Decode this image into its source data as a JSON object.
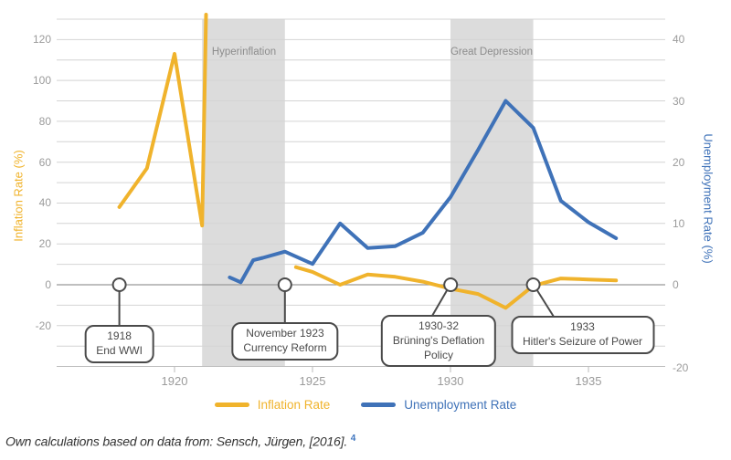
{
  "caption": {
    "text": "Own calculations based on data from: Sensch, Jürgen, [2016].",
    "footnote_ref": "4",
    "footnote_color": "#3e74be"
  },
  "legend": {
    "items": [
      {
        "label": "Inflation Rate",
        "color": "#F0B32C"
      },
      {
        "label": "Unemployment Rate",
        "color": "#3F72B8"
      }
    ]
  },
  "chart_data": {
    "type": "line",
    "title": "",
    "x_axis": {
      "tick_years": [
        1920,
        1925,
        1930,
        1935
      ]
    },
    "left_axis": {
      "title": "Inflation Rate (%)",
      "color": "#F0B32C",
      "tick_values": [
        120,
        100,
        80,
        60,
        40,
        20,
        0,
        -20
      ],
      "range": [
        -40,
        130
      ],
      "grid_step": 10
    },
    "right_axis": {
      "title": "Unemployment Rate (%)",
      "color": "#3F72B8",
      "tick_values": [
        40,
        30,
        20,
        10,
        0,
        -20
      ],
      "scale_ratio_to_left": 3
    },
    "bands": [
      {
        "label": "Hyperinflation",
        "from_year": 1921,
        "to_year": 1924,
        "fill": "#DCDCDC"
      },
      {
        "label": "Great Depression",
        "from_year": 1930,
        "to_year": 1933,
        "fill": "#DCDCDC"
      }
    ],
    "series": [
      {
        "name": "Inflation Rate",
        "axis": "left",
        "unit": "%",
        "color": "#F0B32C",
        "segments": [
          [
            [
              1918,
              38
            ],
            [
              1919,
              57
            ],
            [
              1920,
              113
            ],
            [
              1921,
              29
            ]
          ],
          [
            [
              1924.4,
              8.6
            ],
            [
              1925,
              6.3
            ],
            [
              1926,
              0
            ],
            [
              1927,
              5
            ],
            [
              1928,
              3.9
            ],
            [
              1929,
              1.5
            ],
            [
              1930,
              -1.9
            ],
            [
              1931,
              -4.5
            ],
            [
              1932,
              -11.3
            ],
            [
              1933,
              -0.5
            ],
            [
              1934,
              3.1
            ],
            [
              1935,
              2.6
            ],
            [
              1936,
              2.1
            ]
          ]
        ],
        "offscale_note": "1922-1923 hyperinflation values exceed chart top (line exits plot)"
      },
      {
        "name": "Unemployment Rate",
        "axis": "right",
        "unit": "%",
        "color": "#3F72B8",
        "points": [
          [
            1922,
            1.2
          ],
          [
            1922.4,
            0.4
          ],
          [
            1922.85,
            4.0
          ],
          [
            1923.2,
            4.4
          ],
          [
            1924,
            5.4
          ],
          [
            1925,
            3.4
          ],
          [
            1926,
            10
          ],
          [
            1927,
            6
          ],
          [
            1928,
            6.3
          ],
          [
            1929,
            8.5
          ],
          [
            1930,
            14.3
          ],
          [
            1931,
            22
          ],
          [
            1932,
            30
          ],
          [
            1933,
            25.6
          ],
          [
            1934,
            13.7
          ],
          [
            1935,
            10.2
          ],
          [
            1936,
            7.6
          ]
        ]
      }
    ],
    "annotations": [
      {
        "id": "end-wwi",
        "year": 1918,
        "lines": [
          "1918",
          "End WWI"
        ]
      },
      {
        "id": "currency-reform",
        "year": 1923.9,
        "lines": [
          "November 1923",
          "Currency Reform"
        ]
      },
      {
        "id": "bruening-deflation",
        "year": 1930,
        "lines": [
          "1930-32",
          "Brüning's Deflation",
          "Policy"
        ]
      },
      {
        "id": "hitler-seizure",
        "year": 1933,
        "lines": [
          "1933",
          "Hitler's Seizure of Power"
        ]
      }
    ]
  }
}
